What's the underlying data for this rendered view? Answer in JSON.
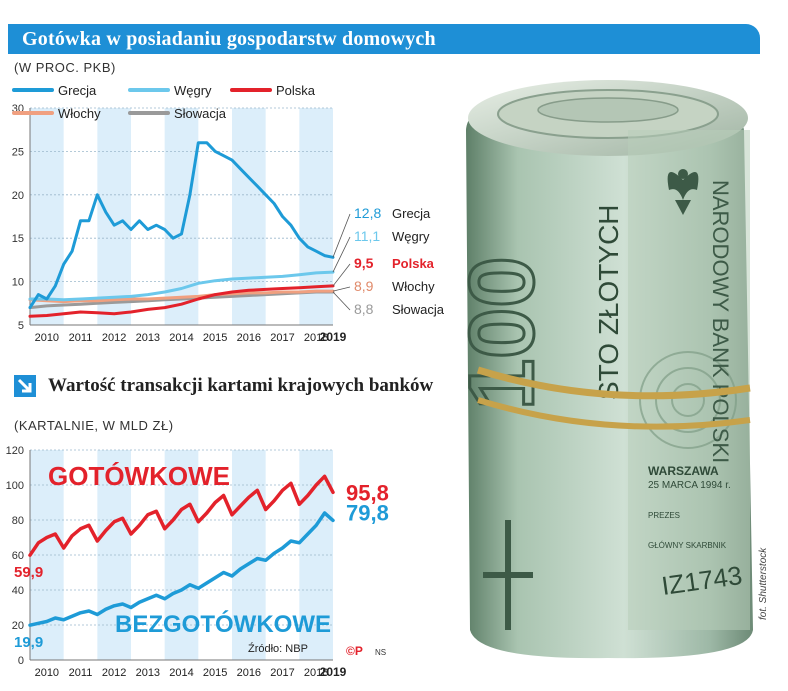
{
  "header": {
    "title": "Gotówka w posiadaniu gospodarstw domowych",
    "subtitle": "(W PROC. PKB)"
  },
  "section2": {
    "title": "Wartość transakcji kartami krajowych banków",
    "subtitle": "(KARTALNIE, W MLD ZŁ)"
  },
  "source": "Źródło: NBP",
  "copyright": "©P",
  "copyright_ns": "NS",
  "photo_credit": "fot. Shutterstock",
  "banknote": {
    "value": "100",
    "words": "STO ZŁOTYCH",
    "city": "WARSZAWA",
    "date": "25 MARCA 1994 r.",
    "prezes": "PREZES",
    "skarbnik": "GŁÓWNY SKARBNIK",
    "serial": "IZ1743",
    "bank": "NARODOWY BANK POLSKI"
  },
  "colors": {
    "grecja": "#1e9bd7",
    "wegry": "#6cc8ec",
    "polska": "#e3222b",
    "wlochy": "#f0a080",
    "slowacja": "#9a9a9a",
    "band": "#dceefa",
    "banner": "#1e8fd6"
  },
  "chart_data": [
    {
      "type": "line",
      "title": "Gotówka w posiadaniu gospodarstw domowych",
      "subtitle": "(W PROC. PKB)",
      "x_ticks": [
        "2010",
        "2011",
        "2012",
        "2013",
        "2014",
        "2015",
        "2016",
        "2017",
        "2018",
        "2019"
      ],
      "ylim": [
        5,
        30
      ],
      "y_ticks": [
        5,
        10,
        15,
        20,
        25,
        30
      ],
      "legend": "top",
      "series": [
        {
          "name": "Grecja",
          "color": "#1e9bd7",
          "end_label": "12,8",
          "x": [
            2010.0,
            2010.25,
            2010.5,
            2010.75,
            2011.0,
            2011.25,
            2011.5,
            2011.75,
            2012.0,
            2012.25,
            2012.5,
            2012.75,
            2013.0,
            2013.25,
            2013.5,
            2013.75,
            2014.0,
            2014.25,
            2014.5,
            2014.75,
            2015.0,
            2015.25,
            2015.5,
            2015.75,
            2016.0,
            2016.25,
            2016.5,
            2016.75,
            2017.0,
            2017.25,
            2017.5,
            2017.75,
            2018.0,
            2018.25,
            2018.5,
            2018.75,
            2019.0
          ],
          "values": [
            7.0,
            8.5,
            8.0,
            9.5,
            12.0,
            13.5,
            17.0,
            17.0,
            20.0,
            18.0,
            16.5,
            17.0,
            16.0,
            17.0,
            16.0,
            16.5,
            16.0,
            15.0,
            15.5,
            20.0,
            26.0,
            26.0,
            25.0,
            24.5,
            24.0,
            23.0,
            22.0,
            21.0,
            20.0,
            19.0,
            17.5,
            16.5,
            15.0,
            14.0,
            13.5,
            13.0,
            12.8
          ]
        },
        {
          "name": "Węgry",
          "color": "#6cc8ec",
          "end_label": "11,1",
          "x": [
            2010.0,
            2010.5,
            2011.0,
            2011.5,
            2012.0,
            2012.5,
            2013.0,
            2013.5,
            2014.0,
            2014.5,
            2015.0,
            2015.5,
            2016.0,
            2016.5,
            2017.0,
            2017.5,
            2018.0,
            2018.5,
            2019.0
          ],
          "values": [
            8.0,
            8.0,
            7.9,
            8.0,
            8.1,
            8.2,
            8.3,
            8.5,
            8.8,
            9.2,
            9.8,
            10.1,
            10.3,
            10.4,
            10.5,
            10.6,
            10.8,
            11.0,
            11.1
          ]
        },
        {
          "name": "Polska",
          "color": "#e3222b",
          "end_label": "9,5",
          "x": [
            2010.0,
            2010.5,
            2011.0,
            2011.5,
            2012.0,
            2012.5,
            2013.0,
            2013.5,
            2014.0,
            2014.5,
            2015.0,
            2015.5,
            2016.0,
            2016.5,
            2017.0,
            2017.5,
            2018.0,
            2018.5,
            2019.0
          ],
          "values": [
            6.0,
            6.1,
            6.3,
            6.5,
            6.4,
            6.3,
            6.5,
            6.8,
            7.0,
            7.4,
            8.0,
            8.5,
            8.8,
            9.0,
            9.1,
            9.2,
            9.3,
            9.4,
            9.5
          ]
        },
        {
          "name": "Włochy",
          "color": "#f0a080",
          "end_label": "8,9",
          "x": [
            2010.0,
            2010.5,
            2011.0,
            2011.5,
            2012.0,
            2012.5,
            2013.0,
            2013.5,
            2014.0,
            2014.5,
            2015.0,
            2015.5,
            2016.0,
            2016.5,
            2017.0,
            2017.5,
            2018.0,
            2018.5,
            2019.0
          ],
          "values": [
            7.9,
            7.8,
            7.7,
            7.8,
            7.8,
            7.9,
            8.0,
            8.0,
            8.1,
            8.2,
            8.3,
            8.5,
            8.6,
            8.7,
            8.7,
            8.8,
            8.8,
            8.9,
            8.9
          ]
        },
        {
          "name": "Słowacja",
          "color": "#9a9a9a",
          "end_label": "8,8",
          "x": [
            2010.0,
            2010.5,
            2011.0,
            2011.5,
            2012.0,
            2012.5,
            2013.0,
            2013.5,
            2014.0,
            2014.5,
            2015.0,
            2015.5,
            2016.0,
            2016.5,
            2017.0,
            2017.5,
            2018.0,
            2018.5,
            2019.0
          ],
          "values": [
            7.0,
            7.2,
            7.3,
            7.4,
            7.5,
            7.6,
            7.7,
            7.8,
            7.9,
            8.0,
            8.1,
            8.2,
            8.3,
            8.4,
            8.5,
            8.6,
            8.7,
            8.8,
            8.8
          ]
        }
      ]
    },
    {
      "type": "line",
      "title": "Wartość transakcji kartami krajowych banków",
      "subtitle": "(KARTALNIE, W MLD ZŁ)",
      "x_ticks": [
        "2010",
        "2011",
        "2012",
        "2013",
        "2014",
        "2015",
        "2016",
        "2017",
        "2018",
        "2019"
      ],
      "ylim": [
        0,
        120
      ],
      "y_ticks": [
        0,
        20,
        40,
        60,
        80,
        100,
        120
      ],
      "series": [
        {
          "name": "GOTÓWKOWE",
          "color": "#e3222b",
          "start_label": "59,9",
          "end_label": "95,8",
          "x": [
            2010.0,
            2010.25,
            2010.5,
            2010.75,
            2011.0,
            2011.25,
            2011.5,
            2011.75,
            2012.0,
            2012.25,
            2012.5,
            2012.75,
            2013.0,
            2013.25,
            2013.5,
            2013.75,
            2014.0,
            2014.25,
            2014.5,
            2014.75,
            2015.0,
            2015.25,
            2015.5,
            2015.75,
            2016.0,
            2016.25,
            2016.5,
            2016.75,
            2017.0,
            2017.25,
            2017.5,
            2017.75,
            2018.0,
            2018.25,
            2018.5,
            2018.75,
            2019.0
          ],
          "values": [
            59.9,
            67,
            70,
            72,
            64,
            71,
            75,
            77,
            68,
            74,
            79,
            81,
            72,
            77,
            83,
            85,
            75,
            80,
            86,
            89,
            79,
            84,
            90,
            94,
            83,
            88,
            93,
            97,
            86,
            91,
            97,
            101,
            89,
            94,
            100,
            105,
            95.8
          ]
        },
        {
          "name": "BEZGOTÓWKOWE",
          "color": "#1e9bd7",
          "start_label": "19,9",
          "end_label": "79,8",
          "x": [
            2010.0,
            2010.25,
            2010.5,
            2010.75,
            2011.0,
            2011.25,
            2011.5,
            2011.75,
            2012.0,
            2012.25,
            2012.5,
            2012.75,
            2013.0,
            2013.25,
            2013.5,
            2013.75,
            2014.0,
            2014.25,
            2014.5,
            2014.75,
            2015.0,
            2015.25,
            2015.5,
            2015.75,
            2016.0,
            2016.25,
            2016.5,
            2016.75,
            2017.0,
            2017.25,
            2017.5,
            2017.75,
            2018.0,
            2018.25,
            2018.5,
            2018.75,
            2019.0
          ],
          "values": [
            19.9,
            21,
            22,
            24,
            23,
            25,
            27,
            28,
            26,
            29,
            31,
            32,
            30,
            33,
            35,
            37,
            35,
            38,
            40,
            43,
            41,
            44,
            47,
            50,
            48,
            52,
            55,
            58,
            57,
            61,
            64,
            68,
            67,
            72,
            77,
            84,
            79.8
          ]
        }
      ]
    }
  ]
}
